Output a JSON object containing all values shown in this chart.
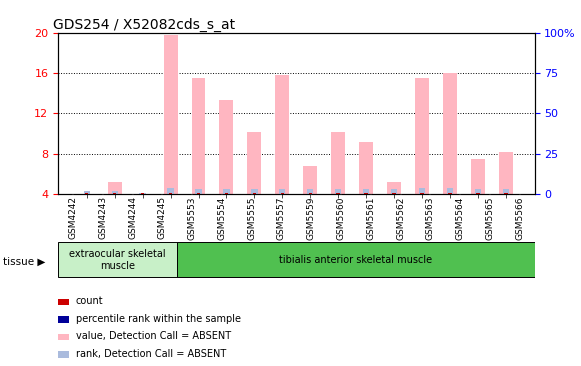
{
  "title": "GDS254 / X52082cds_s_at",
  "samples": [
    "GSM4242",
    "GSM4243",
    "GSM4244",
    "GSM4245",
    "GSM5553",
    "GSM5554",
    "GSM5555",
    "GSM5557",
    "GSM5559",
    "GSM5560",
    "GSM5561",
    "GSM5562",
    "GSM5563",
    "GSM5564",
    "GSM5565",
    "GSM5566"
  ],
  "pink_values": [
    4.0,
    5.2,
    4.0,
    19.8,
    15.5,
    13.3,
    10.2,
    15.8,
    6.8,
    10.2,
    9.2,
    5.2,
    15.5,
    16.0,
    7.5,
    8.2
  ],
  "blue_values": [
    4.3,
    4.3,
    4.1,
    4.6,
    4.5,
    4.5,
    4.5,
    4.5,
    4.5,
    4.5,
    4.5,
    4.5,
    4.6,
    4.6,
    4.5,
    4.5
  ],
  "red_values": [
    4.0,
    4.0,
    4.0,
    4.0,
    4.0,
    4.0,
    4.0,
    4.0,
    4.0,
    4.0,
    4.0,
    4.0,
    4.0,
    4.0,
    4.0,
    4.0
  ],
  "ylim_left": [
    4,
    20
  ],
  "yticks_left": [
    4,
    8,
    12,
    16,
    20
  ],
  "ylim_right": [
    0,
    100
  ],
  "yticks_right": [
    0,
    25,
    50,
    75,
    100
  ],
  "ylabel_right_labels": [
    "0",
    "25",
    "50",
    "75",
    "100%"
  ],
  "tissue_groups": [
    {
      "label": "extraocular skeletal\nmuscle",
      "start": 0,
      "end": 4
    },
    {
      "label": "tibialis anterior skeletal muscle",
      "start": 4,
      "end": 16
    }
  ],
  "tissue_colors": [
    "#c8f0c8",
    "#50c050"
  ],
  "tissue_label": "tissue",
  "legend_items": [
    {
      "color": "#cc0000",
      "label": "count"
    },
    {
      "color": "#000099",
      "label": "percentile rank within the sample"
    },
    {
      "color": "#ffb6c1",
      "label": "value, Detection Call = ABSENT"
    },
    {
      "color": "#aabbdd",
      "label": "rank, Detection Call = ABSENT"
    }
  ],
  "pink_color": "#ffb6c1",
  "blue_color": "#aabbdd",
  "red_color": "#cc0000",
  "bar_width": 0.5,
  "grid_color": "black",
  "background_color": "white",
  "title_fontsize": 10,
  "axis_fontsize": 8
}
